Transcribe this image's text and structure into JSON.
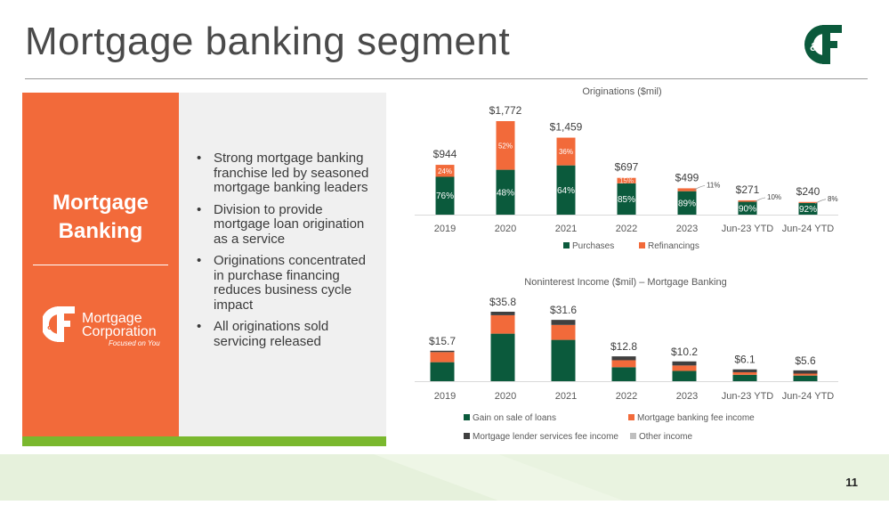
{
  "slide": {
    "title": "Mortgage banking segment",
    "page_number": "11"
  },
  "panel": {
    "heading_line1": "Mortgage",
    "heading_line2": "Banking",
    "bullets": [
      "Strong mortgage banking franchise led by seasoned mortgage banking leaders",
      "Division to provide mortgage loan origination as a service",
      "Originations concentrated in purchase financing reduces business cycle impact",
      "All originations sold servicing released"
    ],
    "logo": {
      "line1": "Mortgage",
      "line2": "Corporation",
      "tagline": "Focused on You"
    }
  },
  "colors": {
    "orange": "#f26a3a",
    "dark_green": "#0b5a3c",
    "lime": "#7ab82e",
    "dark_gray": "#404040",
    "light_gray": "#bfbfbf"
  },
  "chart_data": [
    {
      "type": "bar",
      "stacked": true,
      "title": "Originations ($mil)",
      "categories": [
        "2019",
        "2020",
        "2021",
        "2022",
        "2023",
        "Jun-23 YTD",
        "Jun-24 YTD"
      ],
      "totals": [
        "$944",
        "$1,772",
        "$1,459",
        "$697",
        "$499",
        "$271",
        "$240"
      ],
      "total_values": [
        944,
        1772,
        1459,
        697,
        499,
        271,
        240
      ],
      "series": [
        {
          "name": "Purchases",
          "color": "#0b5a3c",
          "percent": [
            76,
            48,
            64,
            85,
            89,
            90,
            92
          ],
          "labels": [
            "76%",
            "48%",
            "64%",
            "85%",
            "89%",
            "90%",
            "92%"
          ]
        },
        {
          "name": "Refinancings",
          "color": "#f26a3a",
          "percent": [
            24,
            52,
            36,
            15,
            11,
            10,
            8
          ],
          "labels": [
            "24%",
            "52%",
            "36%",
            "15%",
            "11%",
            "10%",
            "8%"
          ]
        }
      ],
      "legend": "bottom",
      "grid": false
    },
    {
      "type": "bar",
      "stacked": true,
      "title": "Noninterest Income ($mil) – Mortgage Banking",
      "categories": [
        "2019",
        "2020",
        "2021",
        "2022",
        "2023",
        "Jun-23 YTD",
        "Jun-24 YTD"
      ],
      "totals": [
        "$15.7",
        "$35.8",
        "$31.6",
        "$12.8",
        "$10.2",
        "$6.1",
        "$5.6"
      ],
      "total_values": [
        15.7,
        35.8,
        31.6,
        12.8,
        10.2,
        6.1,
        5.6
      ],
      "series": [
        {
          "name": "Gain on sale of loans",
          "color": "#0b5a3c",
          "values": [
            9.8,
            24.5,
            21.3,
            7.2,
            5.3,
            3.3,
            2.9
          ]
        },
        {
          "name": "Mortgage banking fee income",
          "color": "#f26a3a",
          "values": [
            5.2,
            9.5,
            7.7,
            3.6,
            2.8,
            1.3,
            1.0
          ]
        },
        {
          "name": "Mortgage lender services fee income",
          "color": "#404040",
          "values": [
            0.7,
            1.8,
            2.6,
            2.0,
            2.1,
            1.5,
            1.7
          ]
        },
        {
          "name": "Other income",
          "color": "#bfbfbf",
          "values": [
            0,
            0,
            0,
            0,
            0,
            0,
            0
          ]
        }
      ],
      "legend": "bottom",
      "grid": false
    }
  ]
}
